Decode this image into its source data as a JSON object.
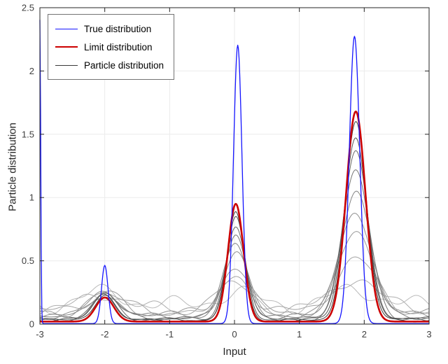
{
  "figure": {
    "background": "#ffffff",
    "axes_box_color": "#262626",
    "grid_color": "#ebebeb",
    "tick_label_color": "#404040"
  },
  "chart_data": {
    "type": "line",
    "title": "",
    "xlabel": "Input",
    "ylabel": "Particle distribution",
    "xlim": [
      -3,
      3
    ],
    "ylim": [
      0,
      2.5
    ],
    "xticks": [
      -3,
      -2,
      -1,
      0,
      1,
      2,
      3
    ],
    "yticks": [
      0,
      0.5,
      1,
      1.5,
      2,
      2.5
    ],
    "grid": true,
    "legend": {
      "position": "northwest",
      "entries": [
        {
          "label": "True distribution",
          "color": "#1414ff",
          "line_width": 1.3
        },
        {
          "label": "Limit distribution",
          "color": "#cc0000",
          "line_width": 2.6
        },
        {
          "label": "Particle distribution",
          "color": "#3a3a3a",
          "line_width": 1.3
        }
      ]
    },
    "series": [
      {
        "name": "True distribution",
        "role": "mixture",
        "color": "#1414ff",
        "line_width": 1.3,
        "baseline": 0.004,
        "components": [
          {
            "mu": -3.0,
            "sigma": 0.012,
            "a": 2.4
          },
          {
            "mu": -2.0,
            "sigma": 0.05,
            "a": 0.46
          },
          {
            "mu": 0.05,
            "sigma": 0.065,
            "a": 2.2
          },
          {
            "mu": 1.85,
            "sigma": 0.08,
            "a": 2.27
          }
        ]
      },
      {
        "name": "Limit distribution",
        "role": "mixture",
        "color": "#cc0000",
        "line_width": 2.6,
        "baseline": 0.02,
        "components": [
          {
            "mu": -2.0,
            "sigma": 0.14,
            "a": 0.19
          },
          {
            "mu": 0.02,
            "sigma": 0.12,
            "a": 0.93
          },
          {
            "mu": 1.87,
            "sigma": 0.15,
            "a": 1.66
          }
        ]
      },
      {
        "name": "Particle distribution",
        "role": "particles",
        "line_width": 1.0,
        "peak_centers": [
          -2.0,
          0.02,
          1.87
        ],
        "peak_sigmas": [
          0.14,
          0.12,
          0.15
        ],
        "curves": [
          {
            "shade": "#bababa",
            "base": 0.15,
            "sigma_scale": 2.3,
            "amps": [
              0.1,
              0.1,
              0.12
            ],
            "phase": 0.0
          },
          {
            "shade": "#aeaeae",
            "base": 0.12,
            "sigma_scale": 2.1,
            "amps": [
              0.12,
              0.18,
              0.25
            ],
            "phase": 1.7
          },
          {
            "shade": "#a4a4a4",
            "base": 0.1,
            "sigma_scale": 1.95,
            "amps": [
              0.14,
              0.28,
              0.42
            ],
            "phase": 3.4
          },
          {
            "shade": "#9a9a9a",
            "base": 0.085,
            "sigma_scale": 1.8,
            "amps": [
              0.16,
              0.38,
              0.62
            ],
            "phase": 5.1
          },
          {
            "shade": "#8f8f8f",
            "base": 0.07,
            "sigma_scale": 1.65,
            "amps": [
              0.17,
              0.48,
              0.82
            ],
            "phase": 6.8
          },
          {
            "shade": "#848484",
            "base": 0.06,
            "sigma_scale": 1.5,
            "amps": [
              0.18,
              0.57,
              1.0
            ],
            "phase": 8.5
          },
          {
            "shade": "#777777",
            "base": 0.05,
            "sigma_scale": 1.38,
            "amps": [
              0.19,
              0.66,
              1.16
            ],
            "phase": 10.2
          },
          {
            "shade": "#696969",
            "base": 0.04,
            "sigma_scale": 1.26,
            "amps": [
              0.2,
              0.74,
              1.32
            ],
            "phase": 11.9
          },
          {
            "shade": "#565656",
            "base": 0.035,
            "sigma_scale": 1.16,
            "amps": [
              0.2,
              0.8,
              1.45
            ],
            "phase": 13.6
          },
          {
            "shade": "#3f3f3f",
            "base": 0.03,
            "sigma_scale": 1.08,
            "amps": [
              0.21,
              0.86,
              1.57
            ],
            "phase": 15.3
          }
        ]
      }
    ]
  }
}
